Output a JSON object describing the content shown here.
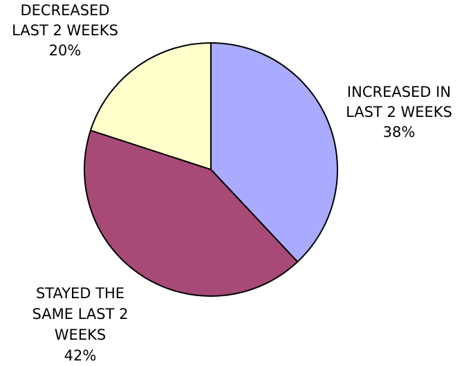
{
  "chart_data": {
    "type": "pie",
    "title": "",
    "slices": [
      {
        "label_lines": [
          "INCREASED IN",
          "LAST 2 WEEKS"
        ],
        "value": 38,
        "value_label": "38%",
        "color": "#aaaaff"
      },
      {
        "label_lines": [
          "STAYED THE",
          "SAME LAST 2",
          "WEEKS"
        ],
        "value": 42,
        "value_label": "42%",
        "color": "#a84a78"
      },
      {
        "label_lines": [
          "DECREASED",
          "LAST 2 WEEKS"
        ],
        "value": 20,
        "value_label": "20%",
        "color": "#ffffcc"
      }
    ],
    "start_angle": "12 o'clock",
    "direction": "clockwise",
    "legend": "none",
    "slice_outline_color": "#000000"
  }
}
